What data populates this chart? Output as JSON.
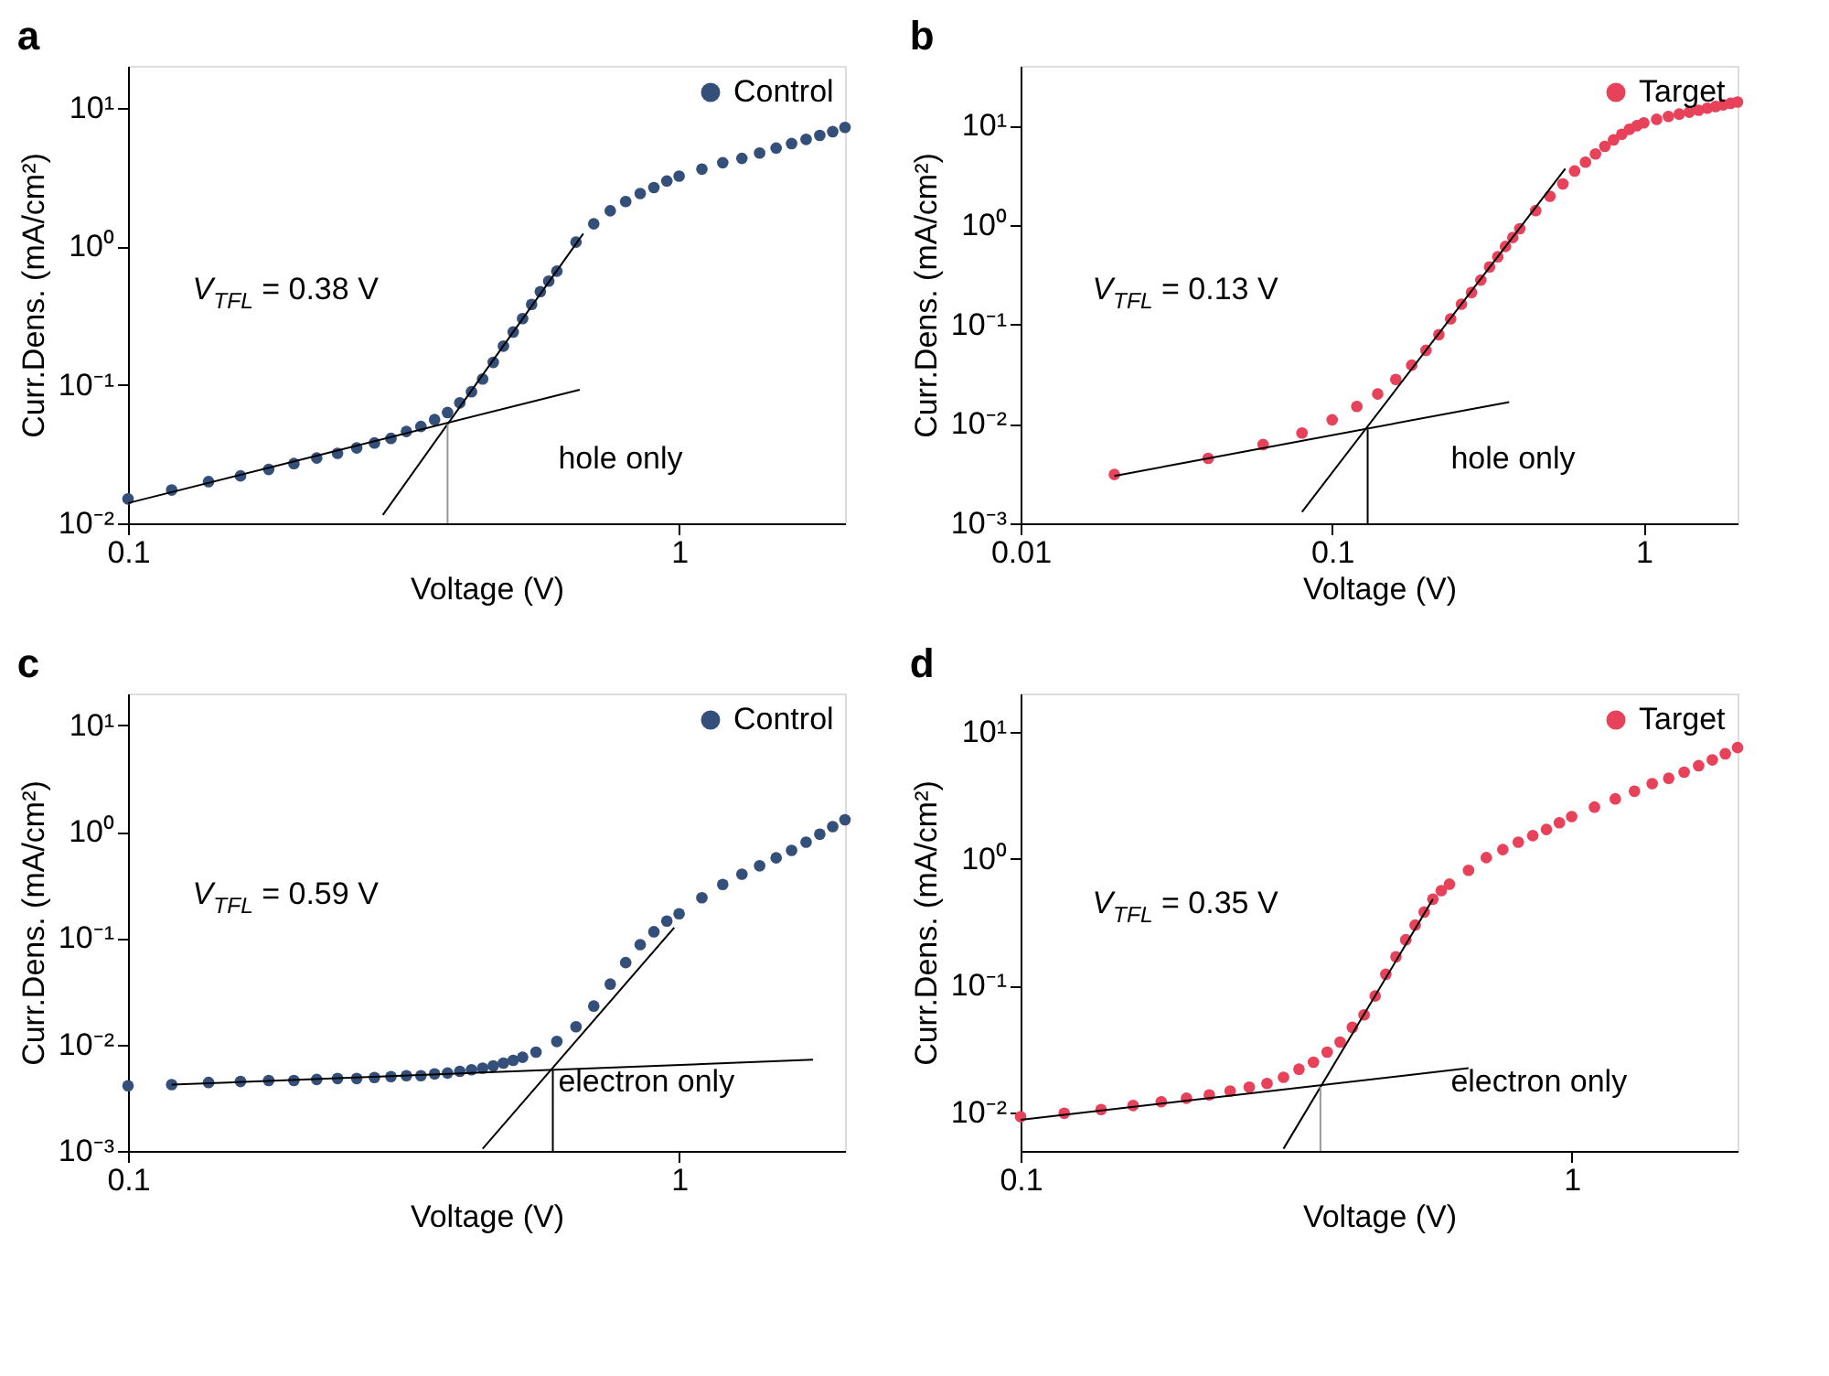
{
  "chart_data": [
    {
      "type": "scatter",
      "title": "a",
      "xlabel": "Voltage (V)",
      "ylabel": "Curr.Dens. (mA/cm²)",
      "log": "xy",
      "xlim": [
        0.1,
        2
      ],
      "ylim": [
        0.01,
        20
      ],
      "xticks": [
        0.1,
        1
      ],
      "yticks": [
        {
          "value": 0.01,
          "label": "10⁻²"
        },
        {
          "value": 0.1,
          "label": "10⁻¹"
        },
        {
          "value": 1,
          "label": "10⁰"
        },
        {
          "value": 10,
          "label": "10¹"
        }
      ],
      "grid": false,
      "legend": "top right",
      "marker": "circle",
      "annotations": [
        "V$_{TFL}$ = 0.38 V",
        "hole only"
      ],
      "series": [
        {
          "name": "Control",
          "color": "#34507a",
          "x": [
            0.1,
            0.12,
            0.14,
            0.16,
            0.18,
            0.2,
            0.22,
            0.24,
            0.26,
            0.28,
            0.3,
            0.32,
            0.34,
            0.36,
            0.38,
            0.4,
            0.42,
            0.44,
            0.46,
            0.48,
            0.5,
            0.52,
            0.54,
            0.56,
            0.58,
            0.6,
            0.65,
            0.7,
            0.75,
            0.8,
            0.85,
            0.9,
            0.95,
            1.0,
            1.1,
            1.2,
            1.3,
            1.4,
            1.5,
            1.6,
            1.7,
            1.8,
            1.9,
            2.0
          ],
          "values": [
            0.015,
            0.0174,
            0.02,
            0.022,
            0.0245,
            0.027,
            0.0296,
            0.032,
            0.035,
            0.038,
            0.041,
            0.046,
            0.05,
            0.056,
            0.063,
            0.074,
            0.089,
            0.11,
            0.145,
            0.19,
            0.24,
            0.3,
            0.38,
            0.47,
            0.56,
            0.66,
            1.07,
            1.45,
            1.8,
            2.1,
            2.4,
            2.65,
            2.95,
            3.2,
            3.6,
            4.0,
            4.3,
            4.7,
            5.1,
            5.5,
            5.9,
            6.3,
            6.7,
            7.2
          ]
        },
        {
          "type": "line",
          "color": "#000000",
          "marker": "none",
          "x": [
            0.1,
            0.66
          ],
          "values": [
            0.014,
            0.092
          ]
        },
        {
          "type": "line",
          "color": "#000000",
          "marker": "none",
          "x": [
            0.29,
            0.67
          ],
          "values": [
            0.0115,
            1.23
          ]
        },
        {
          "type": "line",
          "color": "#999999",
          "marker": "none",
          "x": [
            0.38,
            0.38
          ],
          "values": [
            0.01,
            0.052
          ]
        }
      ]
    },
    {
      "type": "scatter",
      "title": "b",
      "xlabel": "Voltage (V)",
      "ylabel": "Curr.Dens. (mA/cm²)",
      "log": "xy",
      "xlim": [
        0.01,
        2
      ],
      "ylim": [
        0.001,
        40
      ],
      "xticks": [
        0.01,
        0.1,
        1
      ],
      "yticks": [
        {
          "value": 0.001,
          "label": "10⁻³"
        },
        {
          "value": 0.01,
          "label": "10⁻²"
        },
        {
          "value": 0.1,
          "label": "10⁻¹"
        },
        {
          "value": 1,
          "label": "10⁰"
        },
        {
          "value": 10,
          "label": "10¹"
        }
      ],
      "grid": false,
      "legend": "top right",
      "marker": "circle",
      "annotations": [
        "V$_{TFL}$ = 0.13 V",
        "hole only"
      ],
      "series": [
        {
          "name": "Target",
          "color": "#e8415a",
          "x": [
            0.02,
            0.04,
            0.06,
            0.08,
            0.1,
            0.12,
            0.14,
            0.16,
            0.18,
            0.2,
            0.22,
            0.24,
            0.26,
            0.28,
            0.3,
            0.32,
            0.34,
            0.36,
            0.38,
            0.4,
            0.45,
            0.5,
            0.55,
            0.6,
            0.65,
            0.7,
            0.75,
            0.8,
            0.85,
            0.9,
            0.95,
            1.0,
            1.1,
            1.2,
            1.3,
            1.4,
            1.5,
            1.6,
            1.7,
            1.8,
            1.9,
            2.0
          ],
          "values": [
            0.0031,
            0.0045,
            0.0062,
            0.0081,
            0.011,
            0.015,
            0.02,
            0.028,
            0.039,
            0.055,
            0.079,
            0.114,
            0.16,
            0.21,
            0.28,
            0.38,
            0.48,
            0.61,
            0.75,
            0.92,
            1.4,
            1.95,
            2.6,
            3.5,
            4.3,
            5.2,
            6.2,
            7.2,
            8.2,
            9.2,
            10.0,
            10.7,
            11.6,
            12.4,
            13.1,
            13.7,
            14.3,
            15.0,
            15.6,
            16.2,
            16.8,
            17.3
          ]
        },
        {
          "type": "line",
          "color": "#000000",
          "marker": "none",
          "x": [
            0.02,
            0.37
          ],
          "values": [
            0.003,
            0.0166
          ]
        },
        {
          "type": "line",
          "color": "#000000",
          "marker": "none",
          "x": [
            0.08,
            0.56
          ],
          "values": [
            0.0013,
            3.7
          ]
        },
        {
          "type": "line",
          "color": "#000000",
          "marker": "none",
          "x": [
            0.13,
            0.13
          ],
          "values": [
            0.001,
            0.0088
          ]
        }
      ]
    },
    {
      "type": "scatter",
      "title": "c",
      "xlabel": "Voltage (V)",
      "ylabel": "Curr.Dens. (mA/cm²)",
      "log": "xy",
      "xlim": [
        0.1,
        2
      ],
      "ylim": [
        0.001,
        20
      ],
      "xticks": [
        0.1,
        1
      ],
      "yticks": [
        {
          "value": 0.001,
          "label": "10⁻³"
        },
        {
          "value": 0.01,
          "label": "10⁻²"
        },
        {
          "value": 0.1,
          "label": "10⁻¹"
        },
        {
          "value": 1,
          "label": "10⁰"
        },
        {
          "value": 10,
          "label": "10¹"
        }
      ],
      "grid": false,
      "legend": "top right",
      "marker": "circle",
      "annotations": [
        "V$_{TFL}$ = 0.59 V",
        "electron only"
      ],
      "series": [
        {
          "name": "Control",
          "color": "#34507a",
          "x": [
            0.1,
            0.12,
            0.14,
            0.16,
            0.18,
            0.2,
            0.22,
            0.24,
            0.26,
            0.28,
            0.3,
            0.32,
            0.34,
            0.36,
            0.38,
            0.4,
            0.42,
            0.44,
            0.46,
            0.48,
            0.5,
            0.52,
            0.55,
            0.6,
            0.65,
            0.7,
            0.75,
            0.8,
            0.85,
            0.9,
            0.95,
            1.0,
            1.1,
            1.2,
            1.3,
            1.4,
            1.5,
            1.6,
            1.7,
            1.8,
            1.9,
            2.0
          ],
          "values": [
            0.0041,
            0.0042,
            0.0044,
            0.0045,
            0.0046,
            0.0046,
            0.0047,
            0.0048,
            0.0048,
            0.0049,
            0.005,
            0.0051,
            0.0051,
            0.0053,
            0.0054,
            0.0056,
            0.0058,
            0.006,
            0.0063,
            0.0067,
            0.0071,
            0.0076,
            0.0085,
            0.0107,
            0.0147,
            0.023,
            0.037,
            0.059,
            0.087,
            0.115,
            0.145,
            0.17,
            0.24,
            0.32,
            0.4,
            0.48,
            0.57,
            0.67,
            0.8,
            0.95,
            1.12,
            1.3
          ]
        },
        {
          "type": "line",
          "color": "#000000",
          "marker": "none",
          "x": [
            0.12,
            1.75
          ],
          "values": [
            0.0042,
            0.0072
          ]
        },
        {
          "type": "line",
          "color": "#000000",
          "marker": "none",
          "x": [
            0.44,
            0.98
          ],
          "values": [
            0.00105,
            0.126
          ]
        },
        {
          "type": "line",
          "color": "#000000",
          "marker": "none",
          "x": [
            0.59,
            0.59
          ],
          "values": [
            0.001,
            0.0058
          ]
        }
      ]
    },
    {
      "type": "scatter",
      "title": "d",
      "xlabel": "Voltage (V)",
      "ylabel": "Curr.Dens. (mA/cm²)",
      "log": "xy",
      "xlim": [
        0.1,
        2
      ],
      "ylim": [
        0.005,
        20
      ],
      "xticks": [
        0.1,
        1
      ],
      "yticks": [
        {
          "value": 0.01,
          "label": "10⁻²"
        },
        {
          "value": 0.1,
          "label": "10⁻¹"
        },
        {
          "value": 1,
          "label": "10⁰"
        },
        {
          "value": 10,
          "label": "10¹"
        }
      ],
      "grid": false,
      "legend": "top right",
      "marker": "circle",
      "annotations": [
        "V$_{TFL}$ = 0.35 V",
        "electron only"
      ],
      "series": [
        {
          "name": "Target",
          "color": "#e8415a",
          "x": [
            0.1,
            0.12,
            0.14,
            0.16,
            0.18,
            0.2,
            0.22,
            0.24,
            0.26,
            0.28,
            0.3,
            0.32,
            0.34,
            0.36,
            0.38,
            0.4,
            0.42,
            0.44,
            0.46,
            0.48,
            0.5,
            0.52,
            0.54,
            0.56,
            0.58,
            0.6,
            0.65,
            0.7,
            0.75,
            0.8,
            0.85,
            0.9,
            0.95,
            1.0,
            1.1,
            1.2,
            1.3,
            1.4,
            1.5,
            1.6,
            1.7,
            1.8,
            1.9,
            2.0
          ],
          "values": [
            0.0093,
            0.0099,
            0.0106,
            0.0114,
            0.0122,
            0.013,
            0.0138,
            0.0148,
            0.0159,
            0.017,
            0.019,
            0.022,
            0.025,
            0.03,
            0.036,
            0.047,
            0.059,
            0.083,
            0.123,
            0.169,
            0.23,
            0.3,
            0.38,
            0.48,
            0.56,
            0.63,
            0.81,
            1.02,
            1.18,
            1.35,
            1.52,
            1.7,
            1.92,
            2.15,
            2.55,
            2.96,
            3.4,
            3.9,
            4.3,
            4.8,
            5.4,
            6.0,
            6.7,
            7.5
          ]
        },
        {
          "type": "line",
          "color": "#000000",
          "marker": "none",
          "x": [
            0.1,
            0.65
          ],
          "values": [
            0.0088,
            0.0224
          ]
        },
        {
          "type": "line",
          "color": "#000000",
          "marker": "none",
          "x": [
            0.3,
            0.56
          ],
          "values": [
            0.0052,
            0.48
          ]
        },
        {
          "type": "line",
          "color": "#999999",
          "marker": "none",
          "x": [
            0.35,
            0.35
          ],
          "values": [
            0.005,
            0.016
          ]
        }
      ]
    }
  ]
}
